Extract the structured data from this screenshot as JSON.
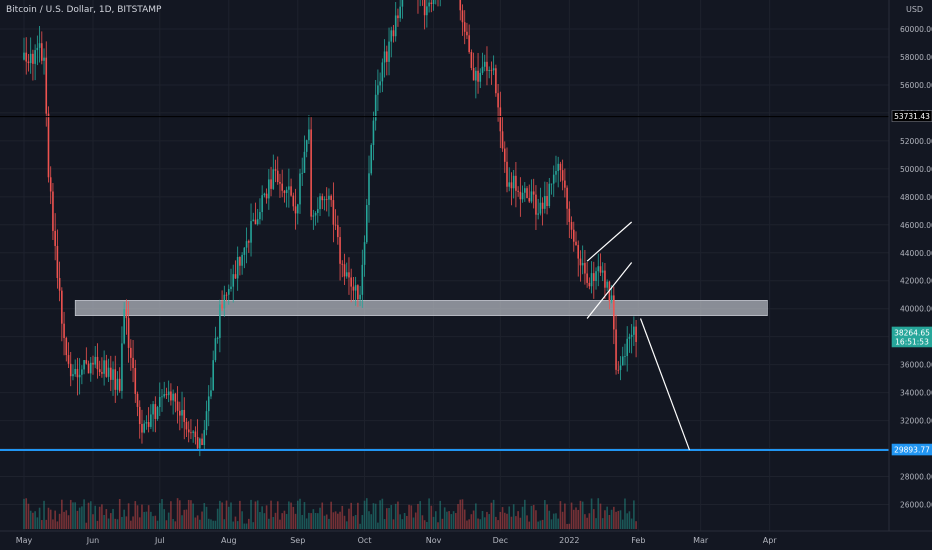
{
  "header": {
    "symbol_title": "Bitcoin / U.S. Dollar, 1D, BITSTAMP",
    "currency": "USD"
  },
  "colors": {
    "background": "#131722",
    "grid": "#1e222d",
    "up": "#26a69a",
    "down": "#ef5350",
    "price_axis_text": "#b2b5be",
    "support_line": "#2196f3",
    "resistance_line": "#000000",
    "zone_fill": "#b2b5be",
    "annotation_lines": "#ffffff"
  },
  "chart_data": {
    "type": "candlestick",
    "symbol": "Bitcoin / U.S. Dollar",
    "timeframe": "1D",
    "exchange": "BITSTAMP",
    "currency": "USD",
    "y_axis_ticks": [
      26000,
      28000,
      30000,
      32000,
      34000,
      36000,
      38000,
      40000,
      42000,
      44000,
      46000,
      48000,
      50000,
      52000,
      54000,
      56000,
      58000,
      60000
    ],
    "y_tick_labels": [
      "26000.00",
      "28000.00",
      "30000.00",
      "32000.00",
      "34000.00",
      "36000.00",
      "38000.00",
      "40000.00",
      "42000.00",
      "44000.00",
      "46000.00",
      "48000.00",
      "50000.00",
      "52000.00",
      "54000.00",
      "56000.00",
      "58000.00",
      "60000.00"
    ],
    "x_axis_labels": [
      "May",
      "Jun",
      "Jul",
      "Aug",
      "Sep",
      "Oct",
      "Nov",
      "Dec",
      "2022",
      "Feb",
      "Mar",
      "Apr"
    ],
    "x_axis_dates": [
      "2021-05-01",
      "2021-06-01",
      "2021-07-01",
      "2021-08-01",
      "2021-09-01",
      "2021-10-01",
      "2021-11-01",
      "2021-12-01",
      "2022-01-01",
      "2022-02-01",
      "2022-03-01",
      "2022-04-01"
    ],
    "price_anchors": [
      {
        "date": "2021-05-01",
        "close": 57800
      },
      {
        "date": "2021-05-10",
        "close": 58500
      },
      {
        "date": "2021-05-12",
        "close": 49500
      },
      {
        "date": "2021-05-19",
        "close": 37500
      },
      {
        "date": "2021-05-22",
        "close": 35500
      },
      {
        "date": "2021-06-05",
        "close": 36000
      },
      {
        "date": "2021-06-13",
        "close": 34500
      },
      {
        "date": "2021-06-15",
        "close": 40200
      },
      {
        "date": "2021-06-22",
        "close": 31500
      },
      {
        "date": "2021-07-06",
        "close": 34000
      },
      {
        "date": "2021-07-20",
        "close": 29800
      },
      {
        "date": "2021-07-28",
        "close": 39800
      },
      {
        "date": "2021-08-14",
        "close": 47000
      },
      {
        "date": "2021-08-22",
        "close": 50000
      },
      {
        "date": "2021-08-31",
        "close": 47200
      },
      {
        "date": "2021-09-06",
        "close": 52500
      },
      {
        "date": "2021-09-07",
        "close": 46900
      },
      {
        "date": "2021-09-15",
        "close": 48000
      },
      {
        "date": "2021-09-21",
        "close": 42800
      },
      {
        "date": "2021-09-29",
        "close": 41000
      },
      {
        "date": "2021-10-06",
        "close": 55500
      },
      {
        "date": "2021-10-16",
        "close": 61000
      },
      {
        "date": "2021-10-20",
        "close": 65000
      },
      {
        "date": "2021-10-28",
        "close": 61500
      },
      {
        "date": "2021-11-10",
        "close": 65000
      },
      {
        "date": "2021-11-18",
        "close": 56900
      },
      {
        "date": "2021-11-28",
        "close": 57000
      },
      {
        "date": "2021-12-04",
        "close": 49200
      },
      {
        "date": "2021-12-14",
        "close": 48000
      },
      {
        "date": "2021-12-20",
        "close": 46800
      },
      {
        "date": "2021-12-27",
        "close": 50700
      },
      {
        "date": "2022-01-05",
        "close": 43500
      },
      {
        "date": "2022-01-10",
        "close": 41800
      },
      {
        "date": "2022-01-14",
        "close": 43000
      },
      {
        "date": "2022-01-20",
        "close": 40700
      },
      {
        "date": "2022-01-22",
        "close": 35100
      },
      {
        "date": "2022-01-24",
        "close": 36300
      },
      {
        "date": "2022-01-29",
        "close": 37900
      },
      {
        "date": "2022-01-31",
        "close": 38264.65
      }
    ],
    "highlighted_price_labels": [
      {
        "value": 53731.43,
        "label": "53731.43",
        "kind": "horizontal-level"
      },
      {
        "value": 38264.65,
        "label": "38264.65",
        "sublabel": "16:51:53",
        "kind": "last-price"
      },
      {
        "value": 29893.77,
        "label": "29893.77",
        "kind": "support-level"
      }
    ],
    "drawings": {
      "resistance_zone": {
        "from": "2021-05-24",
        "to": "2022-03-31",
        "y_low": 39500,
        "y_high": 40600
      },
      "horizontal_line": {
        "value": 53731.43
      },
      "support_line": {
        "value": 29893.77
      },
      "channel_lines": [
        {
          "x1": "2022-01-09",
          "y1": 43400,
          "x2": "2022-01-29",
          "y2": 46200
        },
        {
          "x1": "2022-01-09",
          "y1": 39300,
          "x2": "2022-01-29",
          "y2": 43300
        }
      ],
      "projection_line": {
        "x1": "2022-02-02",
        "y1": 39300,
        "x2": "2022-02-24",
        "y2": 29893.77
      }
    },
    "volume": {
      "shown": true,
      "scale_labels": false
    },
    "grid": true,
    "y_scale": "linear"
  }
}
